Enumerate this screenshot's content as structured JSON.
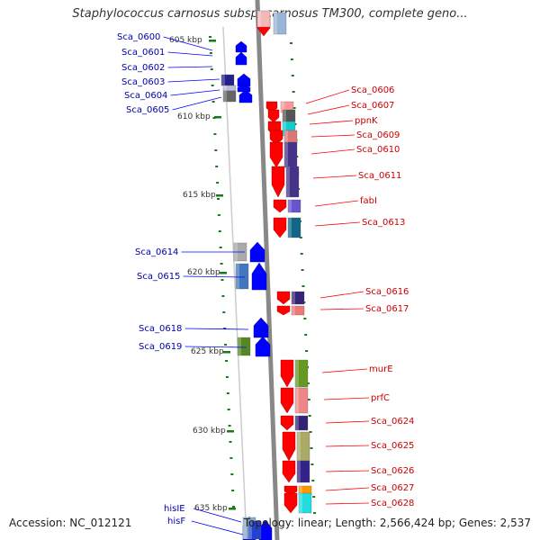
{
  "title": "Staphylococcus carnosus subsp. carnosus TM300, complete geno...",
  "footer": {
    "accession": "Accession: NC_012121",
    "topology": "Topology: linear; Length: 2,566,424 bp; Genes: 2,537"
  },
  "colors": {
    "forward_gene": "#ff0000",
    "reverse_gene": "#0000ff",
    "forward_label": "#cc0000",
    "reverse_label": "#0000aa",
    "scale_tick": "#1a7a1a",
    "backbone": "#888888"
  },
  "scale_ticks": [
    "605 kbp",
    "610 kbp",
    "615 kbp",
    "620 kbp",
    "625 kbp",
    "630 kbp",
    "635 kbp"
  ],
  "reverse_genes": [
    {
      "label": "Sca_0600"
    },
    {
      "label": "Sca_0601"
    },
    {
      "label": "Sca_0602"
    },
    {
      "label": "Sca_0603"
    },
    {
      "label": "Sca_0604"
    },
    {
      "label": "Sca_0605"
    },
    {
      "label": "Sca_0614"
    },
    {
      "label": "Sca_0615"
    },
    {
      "label": "Sca_0618"
    },
    {
      "label": "Sca_0619"
    },
    {
      "label": "hisIE"
    },
    {
      "label": "hisF"
    }
  ],
  "forward_genes": [
    {
      "label": "Sca_0606"
    },
    {
      "label": "Sca_0607"
    },
    {
      "label": "ppnK"
    },
    {
      "label": "Sca_0609"
    },
    {
      "label": "Sca_0610"
    },
    {
      "label": "Sca_0611"
    },
    {
      "label": "fabI"
    },
    {
      "label": "Sca_0613"
    },
    {
      "label": "Sca_0616"
    },
    {
      "label": "Sca_0617"
    },
    {
      "label": "murE"
    },
    {
      "label": "prfC"
    },
    {
      "label": "Sca_0624"
    },
    {
      "label": "Sca_0625"
    },
    {
      "label": "Sca_0626"
    },
    {
      "label": "Sca_0627"
    },
    {
      "label": "Sca_0628"
    }
  ]
}
